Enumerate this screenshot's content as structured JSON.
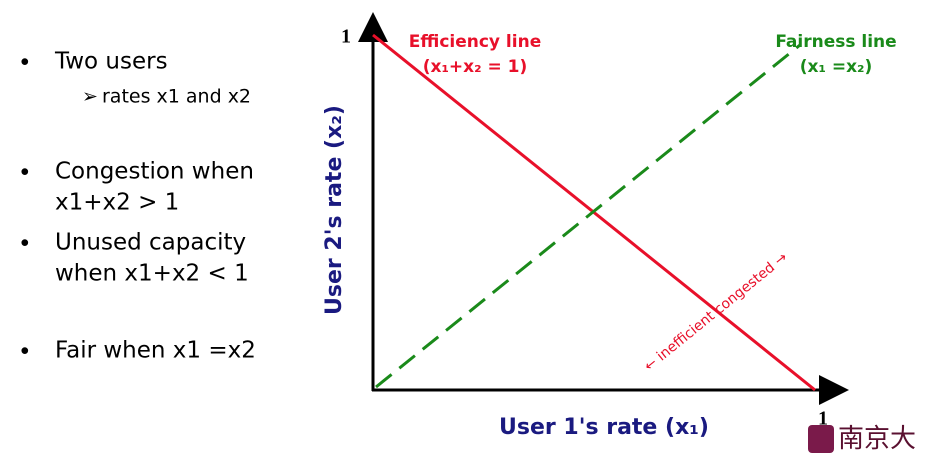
{
  "bullets": [
    {
      "text": "Two users",
      "sub": [
        "rates x1 and x2"
      ]
    },
    {
      "text": "Congestion when",
      "text2": "x1+x2 > 1"
    },
    {
      "text": "Unused capacity",
      "text2": "when x1+x2 < 1"
    },
    {
      "text": "Fair when x1 =x2"
    }
  ],
  "diagram": {
    "y_max": "1",
    "x_max": "1",
    "efficiency_label": "Efficiency line",
    "efficiency_equation": "(x₁+x₂ = 1)",
    "fairness_label": "Fairness line",
    "fairness_equation": "(x₁ =x₂)",
    "y_label": "User 2's rate (x₂)",
    "x_label": "User 1's rate (x₁)",
    "annotation": "← inefficient congested →"
  },
  "logo": "南京大"
}
